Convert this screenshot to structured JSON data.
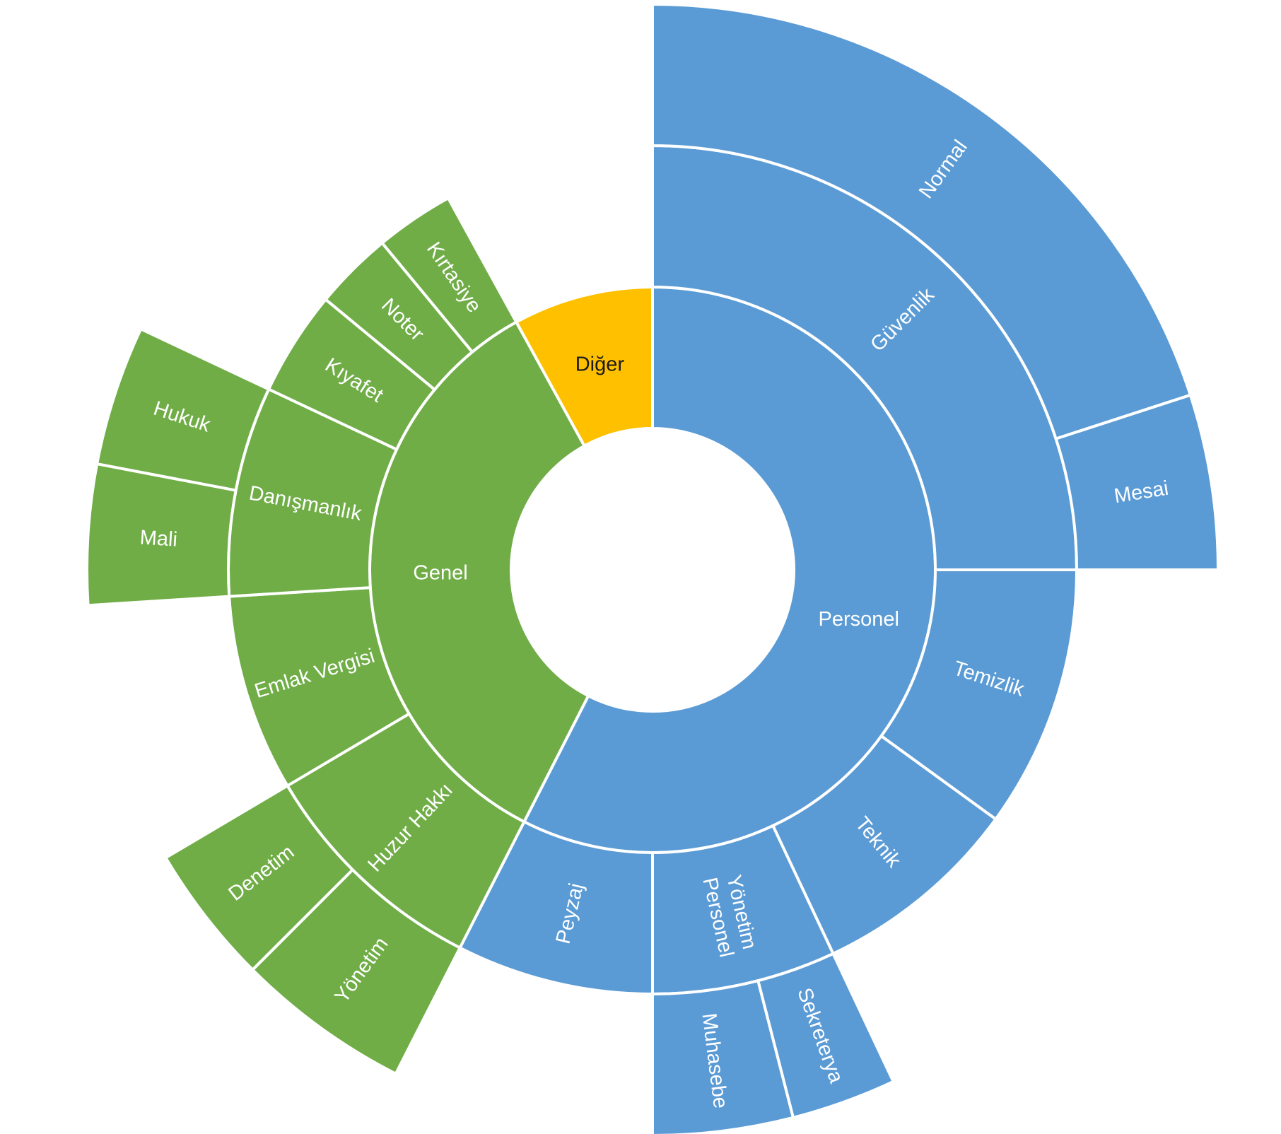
{
  "chart_data": {
    "type": "sunburst",
    "title": "",
    "colors": {
      "Personel": "#5b9bd5",
      "Genel": "#70ad47",
      "Diğer": "#ffc000",
      "label_light": "#ffffff",
      "label_dark": "#1a1a1a",
      "separator": "#ffffff"
    },
    "root": [
      {
        "name": "Personel",
        "value": 57.5,
        "children": [
          {
            "name": "Güvenlik",
            "value": 25,
            "children": [
              {
                "name": "Normal",
                "value": 20
              },
              {
                "name": "Mesai",
                "value": 5
              }
            ]
          },
          {
            "name": "Temizlik",
            "value": 10
          },
          {
            "name": "Teknik",
            "value": 8
          },
          {
            "name": "Yönetim Personel",
            "value": 7,
            "label_lines": [
              "Yönetim",
              "Personel"
            ],
            "children": [
              {
                "name": "Sekreterya",
                "value": 3
              },
              {
                "name": "Muhasebe",
                "value": 4
              }
            ]
          },
          {
            "name": "Peyzaj",
            "value": 7.5
          }
        ]
      },
      {
        "name": "Genel",
        "value": 34.5,
        "children": [
          {
            "name": "Huzur Hakkı",
            "value": 9,
            "children": [
              {
                "name": "Yönetim",
                "value": 5
              },
              {
                "name": "Denetim",
                "value": 4
              }
            ]
          },
          {
            "name": "Emlak Vergisi",
            "value": 7.5
          },
          {
            "name": "Danışmanlık",
            "value": 8,
            "children": [
              {
                "name": "Mali",
                "value": 4
              },
              {
                "name": "Hukuk",
                "value": 4
              }
            ]
          },
          {
            "name": "Kıyafet",
            "value": 4
          },
          {
            "name": "Noter",
            "value": 3
          },
          {
            "name": "Kırtasiye",
            "value": 3
          }
        ]
      },
      {
        "name": "Diğer",
        "value": 8,
        "label_dark": true
      }
    ]
  }
}
